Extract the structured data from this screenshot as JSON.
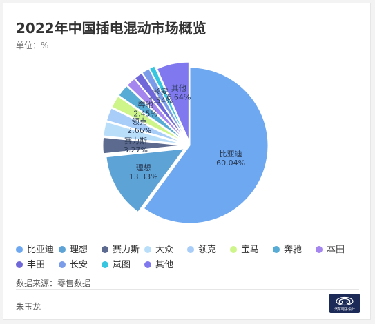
{
  "chart_data": {
    "type": "pie",
    "title": "2022年中国插电混动市场概览",
    "unit_label": "单位：%",
    "slices": [
      {
        "name": "比亚迪",
        "value": 60.04,
        "color": "#6ea8f0",
        "label": "60.04%"
      },
      {
        "name": "理想",
        "value": 13.33,
        "color": "#5ea3d5",
        "label": "13.33%"
      },
      {
        "name": "赛力斯",
        "value": 3.27,
        "color": "#5c6a8f",
        "label": "3.27%"
      },
      {
        "name": "大众",
        "value": 2.9,
        "color": "#b9defa",
        "label": ""
      },
      {
        "name": "领克",
        "value": 2.66,
        "color": "#a7cdf8",
        "label": "2.66%"
      },
      {
        "name": "宝马",
        "value": 2.5,
        "color": "#cdf58a",
        "label": ""
      },
      {
        "name": "奔驰",
        "value": 2.45,
        "color": "#56acd5",
        "label": "2.45%"
      },
      {
        "name": "本田",
        "value": 1.9,
        "color": "#a486ee",
        "label": ""
      },
      {
        "name": "丰田",
        "value": 1.7,
        "color": "#7068d8",
        "label": ""
      },
      {
        "name": "长安",
        "value": 1.54,
        "color": "#7b9ce8",
        "label": "1.54%"
      },
      {
        "name": "岚图",
        "value": 1.1,
        "color": "#36c6e0",
        "label": ""
      },
      {
        "name": "其他",
        "value": 6.64,
        "color": "#7f78ee",
        "label": "6.64%"
      }
    ],
    "legend_position": "bottom"
  },
  "footer": {
    "source": "数据来源：零售数据",
    "author": "朱玉龙",
    "logo_text": "汽车电子设计"
  }
}
